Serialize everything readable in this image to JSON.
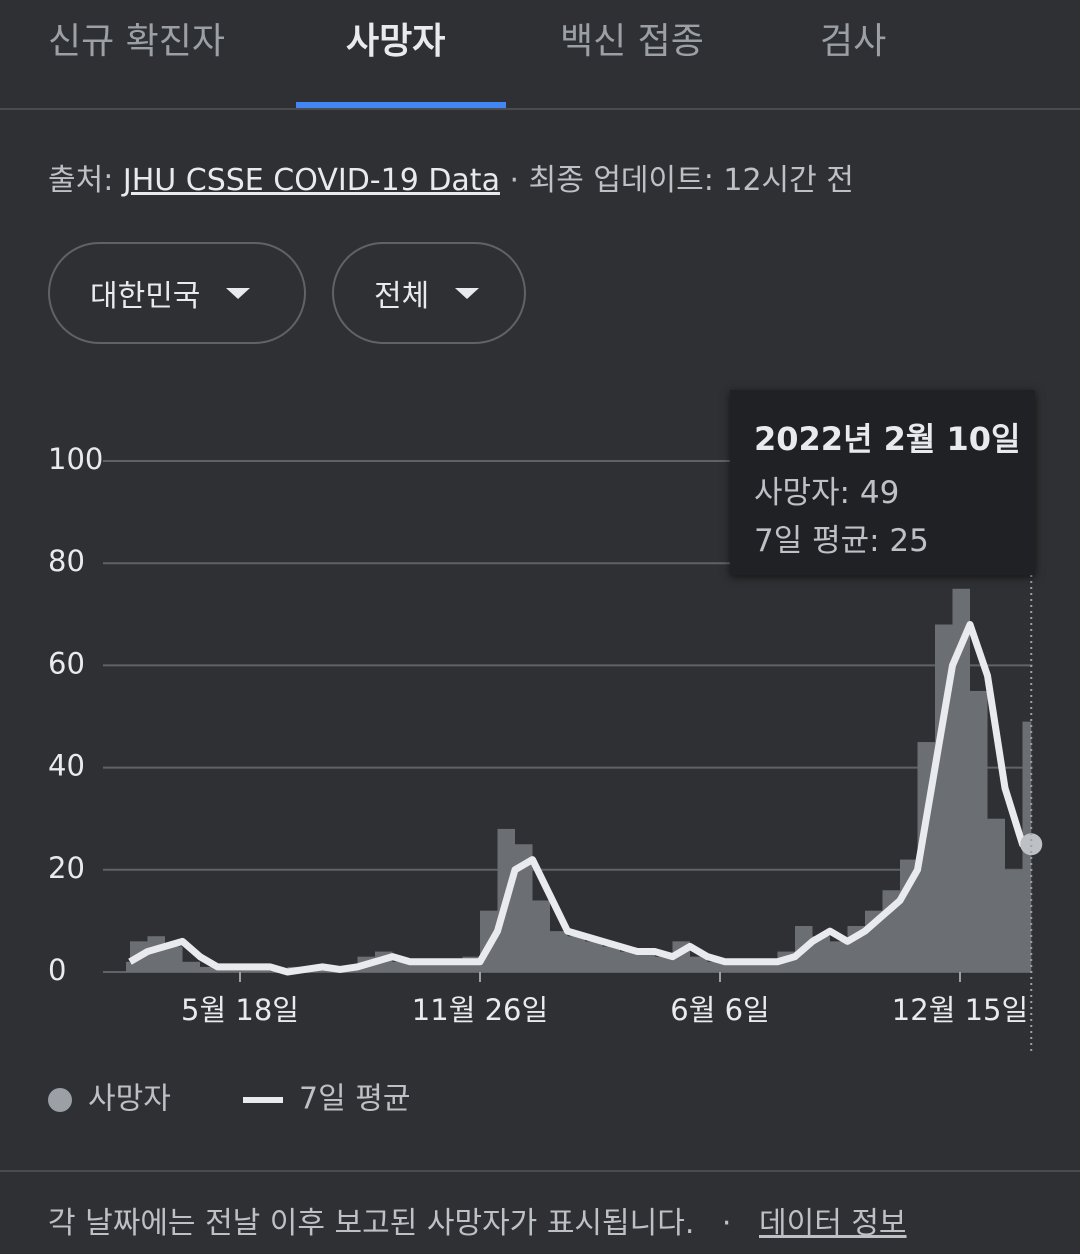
{
  "tabs": [
    "신규 확진자",
    "사망자",
    "백신 접종",
    "검사"
  ],
  "source": {
    "prefix": "출처:",
    "link": "JHU CSSE COVID-19 Data",
    "suffix": "· 최종 업데이트: 12시간 전"
  },
  "filters": [
    "대한민국",
    "전체"
  ],
  "tooltip": {
    "title": "2022년 2월 10일",
    "lines": [
      "사망자: 49",
      "7일 평균: 25"
    ]
  },
  "footer": {
    "text": "각 날짜에는 전날 이후 보고된 사망자가 표시됩니다.",
    "separator": "·",
    "link": "데이터 정보"
  },
  "chart_data": {
    "type": "combo",
    "x": [
      0,
      14,
      28,
      42,
      56,
      70,
      84,
      98,
      112,
      126,
      140,
      154,
      168,
      182,
      196,
      210,
      224,
      238,
      252,
      266,
      280,
      294,
      308,
      322,
      336,
      350,
      364,
      378,
      392,
      406,
      420,
      434,
      448,
      462,
      476,
      490,
      504,
      518,
      532,
      546,
      560,
      574,
      588,
      602,
      616,
      630,
      644,
      658,
      672,
      686,
      700,
      714,
      721
    ],
    "xlim": [
      0,
      722
    ],
    "xticks": [
      {
        "value": 88,
        "label": "5월 18일"
      },
      {
        "value": 280,
        "label": "11월 26일"
      },
      {
        "value": 472,
        "label": "6월 6일"
      },
      {
        "value": 664,
        "label": "12월 15일"
      }
    ],
    "ylim": [
      0,
      100
    ],
    "yticks": [
      0,
      20,
      40,
      60,
      80,
      100
    ],
    "grid": true,
    "series": [
      {
        "name": "사망자",
        "type": "bar",
        "color": "#6b6e72",
        "values": [
          2,
          6,
          7,
          5,
          2,
          1,
          1,
          1,
          1,
          0,
          1,
          1,
          1,
          1,
          3,
          4,
          2,
          2,
          2,
          2,
          3,
          12,
          28,
          25,
          14,
          8,
          7,
          6,
          5,
          4,
          4,
          3,
          6,
          3,
          2,
          2,
          2,
          2,
          4,
          9,
          7,
          6,
          9,
          12,
          16,
          22,
          45,
          68,
          75,
          55,
          30,
          20,
          49
        ]
      },
      {
        "name": "7일 평균",
        "type": "line",
        "color": "#e8eaed",
        "values": [
          2,
          4,
          5,
          6,
          3,
          1,
          1,
          1,
          1,
          0,
          0.5,
          1,
          0.5,
          1,
          2,
          3,
          2,
          2,
          2,
          2,
          2,
          8,
          20,
          22,
          15,
          8,
          7,
          6,
          5,
          4,
          4,
          3,
          5,
          3,
          2,
          2,
          2,
          2,
          3,
          6,
          8,
          6,
          8,
          11,
          14,
          20,
          40,
          60,
          68,
          58,
          36,
          25,
          25
        ]
      }
    ]
  }
}
